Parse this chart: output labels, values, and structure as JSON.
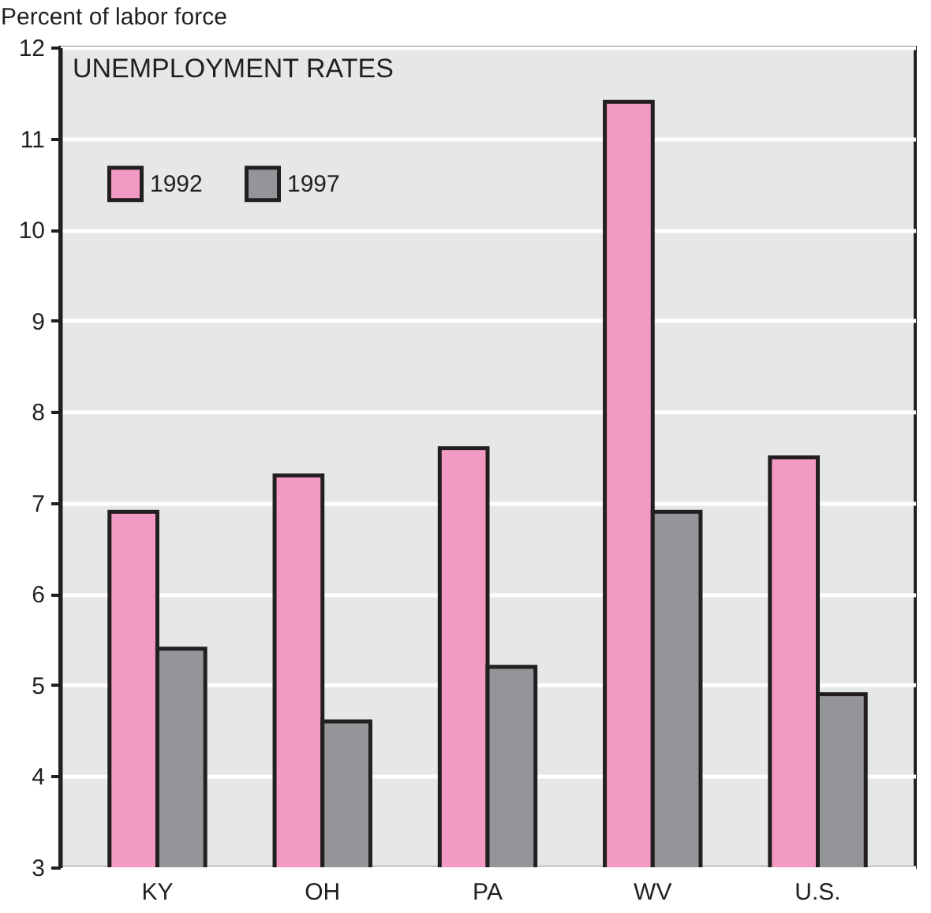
{
  "chart_data": {
    "type": "bar",
    "title": "UNEMPLOYMENT RATES",
    "ylabel": "Percent of labor force",
    "categories": [
      "KY",
      "OH",
      "PA",
      "WV",
      "U.S."
    ],
    "series": [
      {
        "name": "1992",
        "color": "#f39ac2",
        "values": [
          6.9,
          7.3,
          7.6,
          11.4,
          7.5
        ]
      },
      {
        "name": "1997",
        "color": "#939598",
        "values": [
          5.4,
          4.6,
          5.2,
          6.9,
          4.9
        ]
      }
    ],
    "ylim": [
      3,
      12
    ],
    "yticks": [
      3,
      4,
      5,
      6,
      7,
      8,
      9,
      10,
      11,
      12
    ],
    "grid": "y",
    "legend": "top left"
  }
}
